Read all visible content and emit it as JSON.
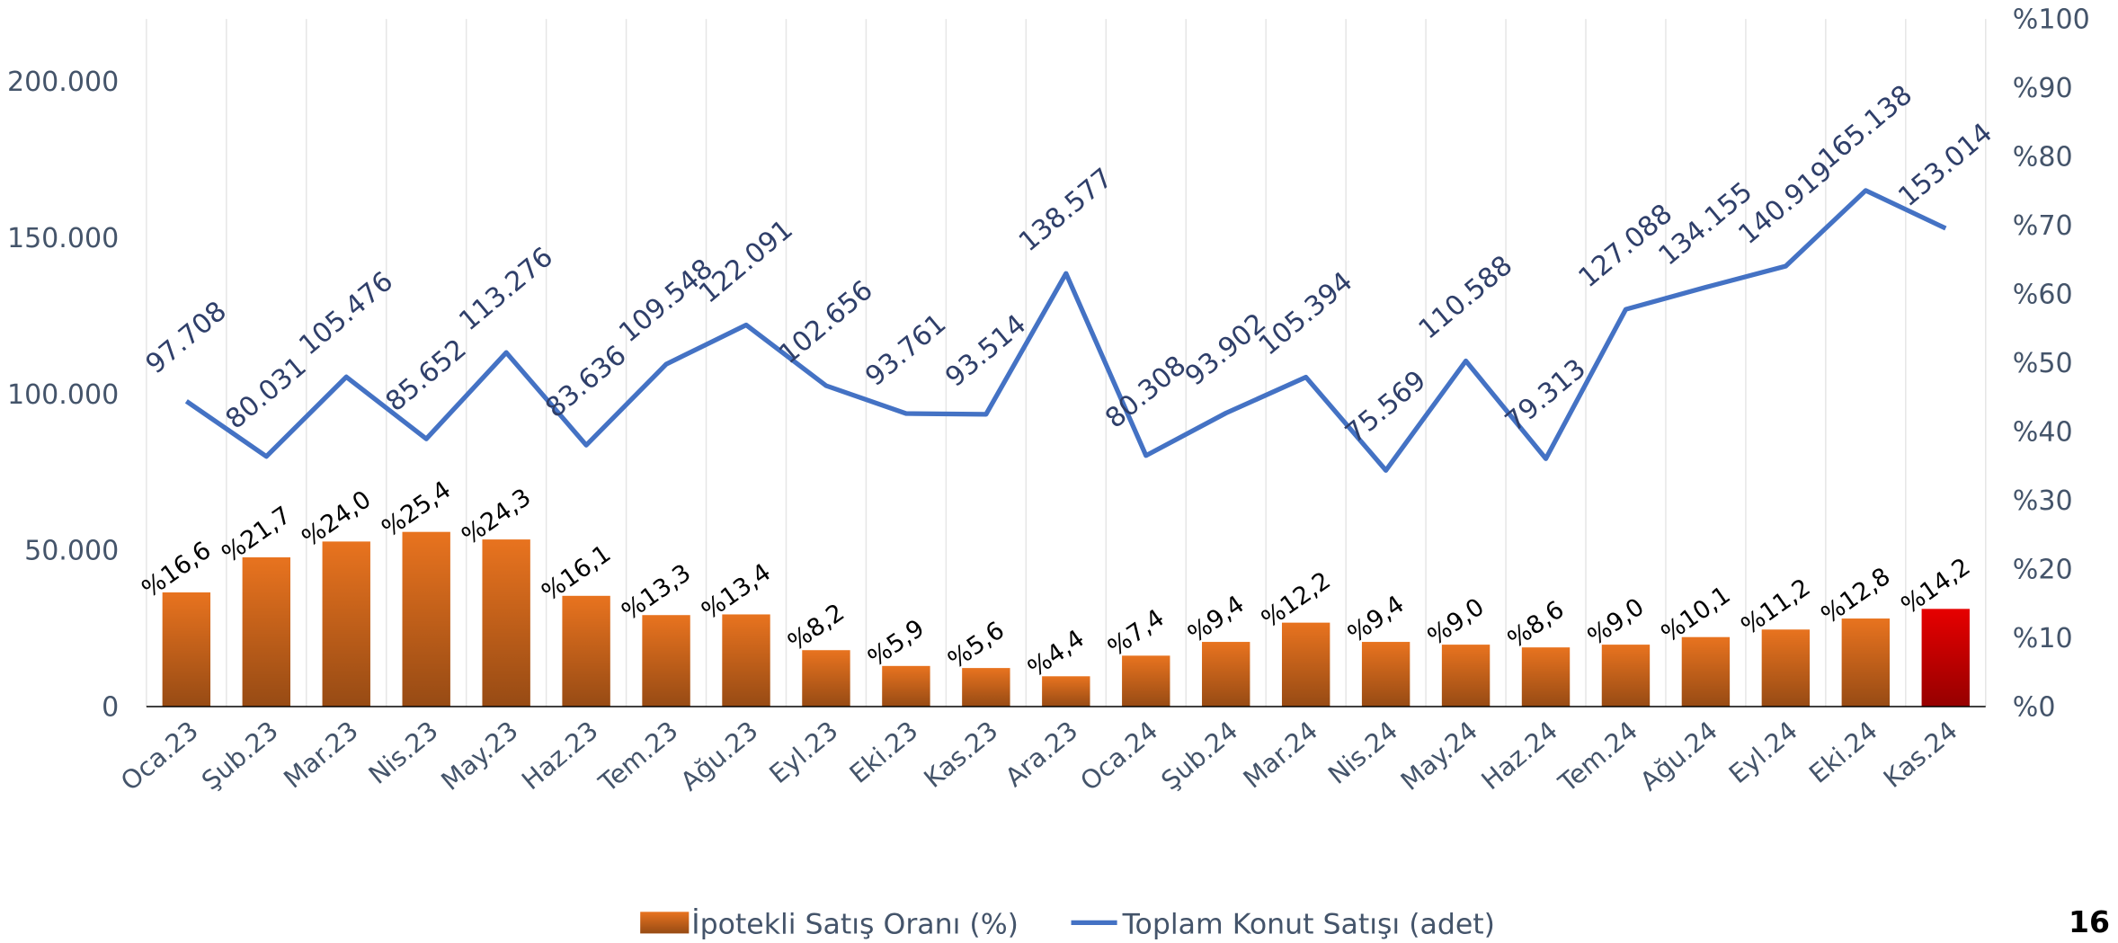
{
  "chart_data": {
    "type": "bar-line",
    "categories": [
      "Oca.23",
      "Şub.23",
      "Mar.23",
      "Nis.23",
      "May.23",
      "Haz.23",
      "Tem.23",
      "Ağu.23",
      "Eyl.23",
      "Eki.23",
      "Kas.23",
      "Ara.23",
      "Oca.24",
      "Şub.24",
      "Mar.24",
      "Nis.24",
      "May.24",
      "Haz.24",
      "Tem.24",
      "Ağu.24",
      "Eyl.24",
      "Eki.24",
      "Kas.24"
    ],
    "series": [
      {
        "name": "İpotekli Satış Oranı (%)",
        "type": "bar",
        "axis": "y2",
        "color": "#e8731f",
        "colors": [
          "#e8731f",
          "#e8731f",
          "#e8731f",
          "#e8731f",
          "#e8731f",
          "#e8731f",
          "#e8731f",
          "#e8731f",
          "#e8731f",
          "#e8731f",
          "#e8731f",
          "#e8731f",
          "#e8731f",
          "#e8731f",
          "#e8731f",
          "#e8731f",
          "#e8731f",
          "#e8731f",
          "#e8731f",
          "#e8731f",
          "#e8731f",
          "#e8731f",
          "#e60000"
        ],
        "values": [
          16.6,
          21.7,
          24.0,
          25.4,
          24.3,
          16.1,
          13.3,
          13.4,
          8.2,
          5.9,
          5.6,
          4.4,
          7.4,
          9.4,
          12.2,
          9.4,
          9.0,
          8.6,
          9.0,
          10.1,
          11.2,
          12.8,
          14.2
        ],
        "value_labels": [
          "%16,6",
          "%21,7",
          "%24,0",
          "%25,4",
          "%24,3",
          "%16,1",
          "%13,3",
          "%13,4",
          "%8,2",
          "%5,9",
          "%5,6",
          "%4,4",
          "%7,4",
          "%9,4",
          "%12,2",
          "%9,4",
          "%9,0",
          "%8,6",
          "%9,0",
          "%10,1",
          "%11,2",
          "%12,8",
          "%14,2"
        ]
      },
      {
        "name": "Toplam Konut Satışı (adet)",
        "type": "line",
        "axis": "y",
        "color": "#4472c4",
        "values": [
          97708,
          80031,
          105476,
          85652,
          113276,
          83636,
          109548,
          122091,
          102656,
          93761,
          93514,
          138577,
          80308,
          93902,
          105394,
          75569,
          110588,
          79313,
          127088,
          134155,
          140919,
          165138,
          153014
        ],
        "value_labels": [
          "97.708",
          "80.031",
          "105.476",
          "85.652",
          "113.276",
          "83.636",
          "109.548",
          "122.091",
          "102.656",
          "93.761",
          "93.514",
          "138.577",
          "80.308",
          "93.902",
          "105.394",
          "75.569",
          "110.588",
          "79.313",
          "127.088",
          "134.155",
          "140.919",
          "165.138",
          "153.014"
        ]
      }
    ],
    "ylim": [
      0,
      220000
    ],
    "yticks": [
      0,
      {
        "value": 50000,
        "label": "50.000"
      },
      {
        "value": 100000,
        "label": "100.000"
      },
      {
        "value": 150000,
        "label": "150.000"
      },
      {
        "value": 200000,
        "label": "200.000"
      }
    ],
    "y2lim": [
      0,
      100
    ],
    "y2ticks": [
      {
        "value": 0,
        "label": "%0"
      },
      {
        "value": 10,
        "label": "%10"
      },
      {
        "value": 20,
        "label": "%20"
      },
      {
        "value": 30,
        "label": "%30"
      },
      {
        "value": 40,
        "label": "%40"
      },
      {
        "value": 50,
        "label": "%50"
      },
      {
        "value": 60,
        "label": "%60"
      },
      {
        "value": 70,
        "label": "%70"
      },
      {
        "value": 80,
        "label": "%80"
      },
      {
        "value": 90,
        "label": "%90"
      },
      {
        "value": 100,
        "label": "%100"
      }
    ],
    "grid": true,
    "legend": "bottom"
  },
  "page_number": "16"
}
